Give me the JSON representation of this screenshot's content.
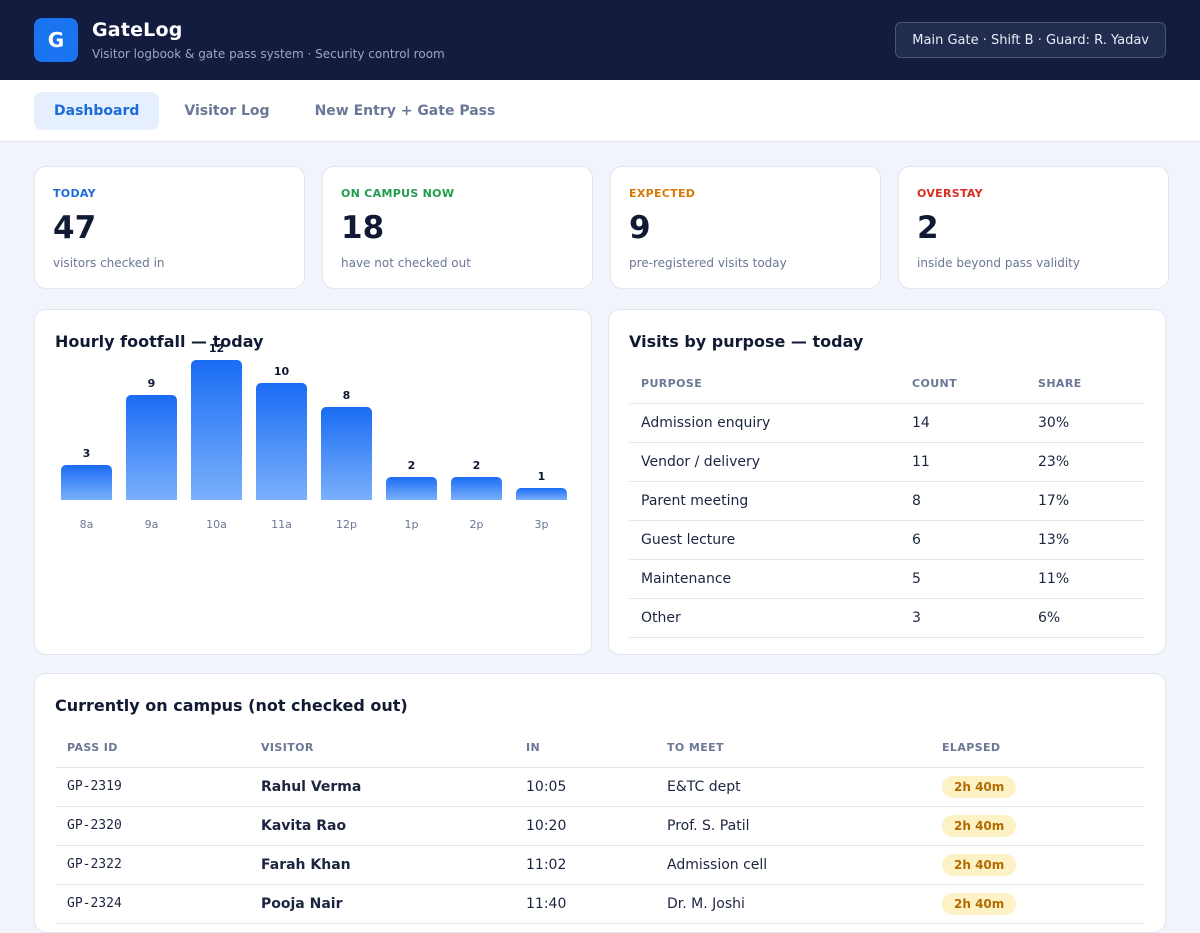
{
  "app": {
    "logo_letter": "G",
    "title": "GateLog",
    "subtitle": "Visitor logbook & gate pass system · Security control room",
    "shift_info": "Main Gate · Shift B · Guard: R. Yadav"
  },
  "tabs": [
    {
      "label": "Dashboard",
      "active": true
    },
    {
      "label": "Visitor Log",
      "active": false
    },
    {
      "label": "New Entry + Gate Pass",
      "active": false
    }
  ],
  "stats": [
    {
      "label": "TODAY",
      "value": "47",
      "desc": "visitors checked in",
      "color": "#1a6cd8"
    },
    {
      "label": "ON CAMPUS NOW",
      "value": "18",
      "desc": "have not checked out",
      "color": "#1f9d4c"
    },
    {
      "label": "EXPECTED",
      "value": "9",
      "desc": "pre-registered visits today",
      "color": "#d97706"
    },
    {
      "label": "OVERSTAY",
      "value": "2",
      "desc": "inside beyond pass validity",
      "color": "#d92d20"
    }
  ],
  "footfall": {
    "title": "Hourly footfall — today"
  },
  "chart_data": {
    "type": "bar",
    "title": "Hourly footfall — today",
    "categories": [
      "8a",
      "9a",
      "10a",
      "11a",
      "12p",
      "1p",
      "2p",
      "3p"
    ],
    "values": [
      3,
      9,
      12,
      10,
      8,
      2,
      2,
      1
    ],
    "xlabel": "",
    "ylabel": "",
    "ylim": [
      0,
      12
    ],
    "grid": false
  },
  "purpose": {
    "title": "Visits by purpose — today",
    "columns": [
      "PURPOSE",
      "COUNT",
      "SHARE"
    ],
    "rows": [
      [
        "Admission enquiry",
        "14",
        "30%"
      ],
      [
        "Vendor / delivery",
        "11",
        "23%"
      ],
      [
        "Parent meeting",
        "8",
        "17%"
      ],
      [
        "Guest lecture",
        "6",
        "13%"
      ],
      [
        "Maintenance",
        "5",
        "11%"
      ],
      [
        "Other",
        "3",
        "6%"
      ]
    ]
  },
  "campus": {
    "title": "Currently on campus (not checked out)",
    "columns": [
      "PASS ID",
      "VISITOR",
      "IN",
      "TO MEET",
      "ELAPSED"
    ],
    "rows": [
      [
        "GP-2319",
        "Rahul Verma",
        "10:05",
        "E&TC dept",
        "2h 40m"
      ],
      [
        "GP-2320",
        "Kavita Rao",
        "10:20",
        "Prof. S. Patil",
        "2h 40m"
      ],
      [
        "GP-2322",
        "Farah Khan",
        "11:02",
        "Admission cell",
        "2h 40m"
      ],
      [
        "GP-2324",
        "Pooja Nair",
        "11:40",
        "Dr. M. Joshi",
        "2h 40m"
      ]
    ]
  }
}
